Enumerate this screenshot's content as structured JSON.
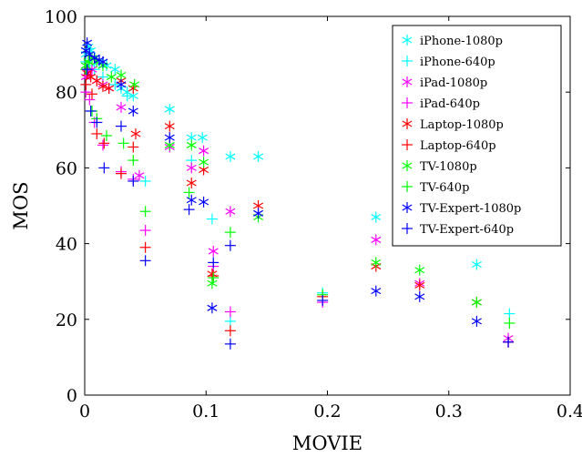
{
  "chart_data": {
    "type": "scatter",
    "xlabel": "MOVIE",
    "ylabel": "MOS",
    "xlim": [
      0,
      0.4
    ],
    "ylim": [
      0,
      100
    ],
    "xticks": [
      0,
      0.1,
      0.2,
      0.3,
      0.4
    ],
    "xtick_labels": [
      "0",
      "0.1",
      "0.2",
      "0.3",
      "0.4"
    ],
    "yticks": [
      0,
      20,
      40,
      60,
      80,
      100
    ],
    "ytick_labels": [
      "0",
      "20",
      "40",
      "60",
      "80",
      "100"
    ],
    "grid": false,
    "legend_position": "top-right",
    "series": [
      {
        "name": "iPhone-1080p",
        "color": "#00ffff",
        "marker": "asterisk",
        "points": [
          [
            0.001,
            90
          ],
          [
            0.003,
            92
          ],
          [
            0.005,
            91
          ],
          [
            0.008,
            89
          ],
          [
            0.012,
            88
          ],
          [
            0.018,
            87
          ],
          [
            0.025,
            86
          ],
          [
            0.03,
            81
          ],
          [
            0.035,
            80
          ],
          [
            0.04,
            79
          ],
          [
            0.07,
            75.5
          ],
          [
            0.088,
            68
          ],
          [
            0.097,
            68
          ],
          [
            0.12,
            63
          ],
          [
            0.143,
            63
          ],
          [
            0.24,
            47
          ],
          [
            0.323,
            34.5
          ]
        ]
      },
      {
        "name": "iPhone-640p",
        "color": "#00ffff",
        "marker": "plus",
        "points": [
          [
            0.001,
            88
          ],
          [
            0.004,
            87
          ],
          [
            0.008,
            86
          ],
          [
            0.015,
            84
          ],
          [
            0.025,
            82
          ],
          [
            0.035,
            79
          ],
          [
            0.05,
            56.5
          ],
          [
            0.088,
            62
          ],
          [
            0.105,
            46.5
          ],
          [
            0.12,
            19.5
          ],
          [
            0.196,
            27
          ],
          [
            0.35,
            21.5
          ]
        ]
      },
      {
        "name": "iPad-1080p",
        "color": "#ff00ff",
        "marker": "asterisk",
        "points": [
          [
            0.001,
            84
          ],
          [
            0.003,
            85
          ],
          [
            0.006,
            86
          ],
          [
            0.01,
            83
          ],
          [
            0.015,
            82
          ],
          [
            0.02,
            81
          ],
          [
            0.03,
            76
          ],
          [
            0.045,
            58
          ],
          [
            0.07,
            65.5
          ],
          [
            0.088,
            60
          ],
          [
            0.098,
            64.5
          ],
          [
            0.106,
            38
          ],
          [
            0.12,
            48.5
          ],
          [
            0.24,
            41
          ],
          [
            0.276,
            29.5
          ],
          [
            0.349,
            15
          ]
        ]
      },
      {
        "name": "iPad-640p",
        "color": "#ff00ff",
        "marker": "plus",
        "points": [
          [
            0.001,
            80
          ],
          [
            0.004,
            78
          ],
          [
            0.008,
            72
          ],
          [
            0.015,
            66
          ],
          [
            0.03,
            59
          ],
          [
            0.04,
            57
          ],
          [
            0.05,
            43.5
          ],
          [
            0.106,
            34
          ],
          [
            0.12,
            22
          ],
          [
            0.196,
            24.5
          ],
          [
            0.349,
            14
          ]
        ]
      },
      {
        "name": "Laptop-1080p",
        "color": "#ff0000",
        "marker": "asterisk",
        "points": [
          [
            0.002,
            85
          ],
          [
            0.005,
            84
          ],
          [
            0.01,
            83
          ],
          [
            0.015,
            81.5
          ],
          [
            0.02,
            81
          ],
          [
            0.03,
            83
          ],
          [
            0.04,
            81
          ],
          [
            0.042,
            69
          ],
          [
            0.07,
            71
          ],
          [
            0.088,
            56
          ],
          [
            0.098,
            59.5
          ],
          [
            0.105,
            32
          ],
          [
            0.143,
            50
          ],
          [
            0.24,
            34
          ],
          [
            0.276,
            29
          ],
          [
            0.323,
            24.5
          ]
        ]
      },
      {
        "name": "Laptop-640p",
        "color": "#ff0000",
        "marker": "plus",
        "points": [
          [
            0.001,
            82
          ],
          [
            0.006,
            79.5
          ],
          [
            0.01,
            69
          ],
          [
            0.016,
            66.5
          ],
          [
            0.03,
            58.5
          ],
          [
            0.04,
            65.5
          ],
          [
            0.05,
            39
          ],
          [
            0.106,
            31.5
          ],
          [
            0.12,
            17
          ],
          [
            0.196,
            26
          ],
          [
            0.349,
            14
          ]
        ]
      },
      {
        "name": "TV-1080p",
        "color": "#00ff00",
        "marker": "asterisk",
        "points": [
          [
            0.001,
            87
          ],
          [
            0.003,
            88
          ],
          [
            0.006,
            89
          ],
          [
            0.01,
            88
          ],
          [
            0.015,
            87
          ],
          [
            0.022,
            84
          ],
          [
            0.03,
            84.5
          ],
          [
            0.041,
            82
          ],
          [
            0.07,
            66
          ],
          [
            0.088,
            66
          ],
          [
            0.098,
            61.5
          ],
          [
            0.105,
            29.5
          ],
          [
            0.143,
            47
          ],
          [
            0.24,
            35
          ],
          [
            0.276,
            33
          ],
          [
            0.323,
            24.5
          ]
        ]
      },
      {
        "name": "TV-640p",
        "color": "#00ff00",
        "marker": "plus",
        "points": [
          [
            0.001,
            86
          ],
          [
            0.006,
            75
          ],
          [
            0.01,
            73
          ],
          [
            0.018,
            68.5
          ],
          [
            0.032,
            66.5
          ],
          [
            0.04,
            62
          ],
          [
            0.05,
            48.5
          ],
          [
            0.086,
            53.5
          ],
          [
            0.106,
            31
          ],
          [
            0.12,
            43
          ],
          [
            0.196,
            26.5
          ],
          [
            0.35,
            19
          ]
        ]
      },
      {
        "name": "TV-Expert-1080p",
        "color": "#0000ff",
        "marker": "asterisk",
        "points": [
          [
            0.001,
            91
          ],
          [
            0.002,
            93
          ],
          [
            0.004,
            90
          ],
          [
            0.008,
            89
          ],
          [
            0.012,
            88.5
          ],
          [
            0.015,
            88
          ],
          [
            0.03,
            82
          ],
          [
            0.04,
            75
          ],
          [
            0.07,
            68
          ],
          [
            0.088,
            51.5
          ],
          [
            0.098,
            51
          ],
          [
            0.105,
            23
          ],
          [
            0.143,
            48
          ],
          [
            0.24,
            27.5
          ],
          [
            0.276,
            26
          ],
          [
            0.323,
            19.5
          ]
        ]
      },
      {
        "name": "TV-Expert-640p",
        "color": "#0000ff",
        "marker": "plus",
        "points": [
          [
            0.002,
            86
          ],
          [
            0.005,
            75
          ],
          [
            0.01,
            72
          ],
          [
            0.016,
            60
          ],
          [
            0.03,
            71
          ],
          [
            0.04,
            56.5
          ],
          [
            0.05,
            35.5
          ],
          [
            0.086,
            49
          ],
          [
            0.106,
            35
          ],
          [
            0.12,
            13.5
          ],
          [
            0.12,
            39.5
          ],
          [
            0.196,
            25
          ],
          [
            0.349,
            14
          ]
        ]
      }
    ]
  }
}
